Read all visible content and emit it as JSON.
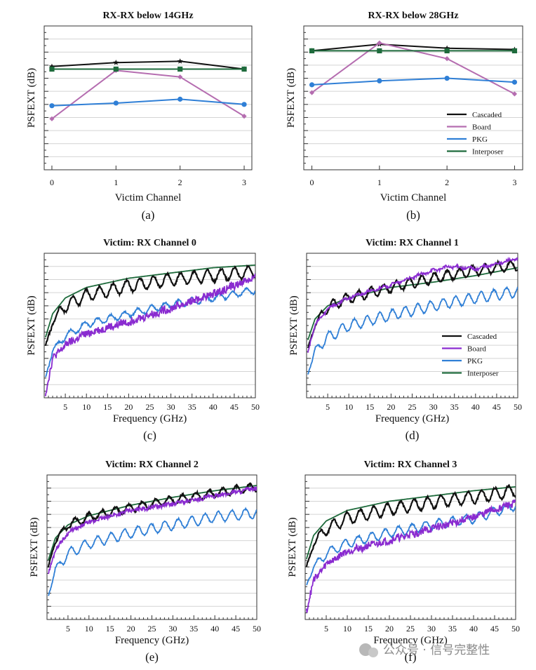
{
  "colors": {
    "Cascaded": "#111111",
    "Board": "#b56db0",
    "Board_freq": "#8a2bd0",
    "PKG": "#2f7fd6",
    "Interposer": "#1e6b3c",
    "grid": "#d4d4d4"
  },
  "legend": [
    "Cascaded",
    "Board",
    "PKG",
    "Interposer"
  ],
  "watermark": "公众号 · 信号完整性",
  "chart_data": [
    {
      "id": "a",
      "type": "line",
      "title": "RX-RX below 14GHz",
      "xlabel": "Victim Channel",
      "ylabel": "PSFEXT (dB)",
      "caption": "(a)",
      "categories": [
        0,
        1,
        2,
        3
      ],
      "xlim": [
        -0.12,
        3.12
      ],
      "ylim": [
        0,
        11
      ],
      "grid": true,
      "show_legend": false,
      "series": [
        {
          "name": "Cascaded",
          "values": [
            7.9,
            8.2,
            8.3,
            7.7
          ],
          "marker": "star"
        },
        {
          "name": "Board",
          "values": [
            3.9,
            7.6,
            7.1,
            4.1
          ],
          "marker": "diamond"
        },
        {
          "name": "PKG",
          "values": [
            4.9,
            5.1,
            5.4,
            5.0
          ],
          "marker": "circle"
        },
        {
          "name": "Interposer",
          "values": [
            7.7,
            7.7,
            7.7,
            7.7
          ],
          "marker": "square"
        }
      ]
    },
    {
      "id": "b",
      "type": "line",
      "title": "RX-RX below 28GHz",
      "xlabel": "Victim Channel",
      "ylabel": "PSFEXT (dB)",
      "caption": "(b)",
      "categories": [
        0,
        1,
        2,
        3
      ],
      "xlim": [
        -0.12,
        3.12
      ],
      "ylim": [
        0,
        11
      ],
      "grid": true,
      "show_legend": true,
      "series": [
        {
          "name": "Cascaded",
          "values": [
            9.1,
            9.6,
            9.3,
            9.2
          ],
          "marker": "star"
        },
        {
          "name": "Board",
          "values": [
            5.9,
            9.7,
            8.5,
            5.8
          ],
          "marker": "diamond"
        },
        {
          "name": "PKG",
          "values": [
            6.5,
            6.8,
            7.0,
            6.7
          ],
          "marker": "circle"
        },
        {
          "name": "Interposer",
          "values": [
            9.1,
            9.1,
            9.1,
            9.1
          ],
          "marker": "square"
        }
      ]
    },
    {
      "id": "c",
      "type": "line",
      "title": "Victim: RX Channel 0",
      "xlabel": "Frequency (GHz)",
      "ylabel": "PSFEXT (dB)",
      "caption": "(c)",
      "xticks": [
        5,
        10,
        15,
        20,
        25,
        30,
        35,
        40,
        45,
        50
      ],
      "xlim": [
        0,
        50
      ],
      "ylim": [
        0,
        11
      ],
      "grid": true,
      "show_legend": false,
      "series": [
        {
          "name": "Interposer",
          "base": [
            [
              0.3,
              4.6
            ],
            [
              2,
              6.4
            ],
            [
              5,
              7.6
            ],
            [
              10,
              8.4
            ],
            [
              20,
              9.1
            ],
            [
              30,
              9.5
            ],
            [
              40,
              9.9
            ],
            [
              50,
              10.1
            ]
          ],
          "ripple": 0
        },
        {
          "name": "Cascaded",
          "base": [
            [
              0.3,
              3.9
            ],
            [
              2,
              5.8
            ],
            [
              5,
              7.0
            ],
            [
              10,
              7.8
            ],
            [
              20,
              8.5
            ],
            [
              30,
              9.0
            ],
            [
              40,
              9.3
            ],
            [
              50,
              9.6
            ]
          ],
          "ripple": 0.45,
          "period": 3.2,
          "noise": 0.08
        },
        {
          "name": "PKG",
          "base": [
            [
              0.3,
              1.5
            ],
            [
              2,
              3.6
            ],
            [
              5,
              4.7
            ],
            [
              10,
              5.6
            ],
            [
              20,
              6.4
            ],
            [
              30,
              7.1
            ],
            [
              40,
              7.6
            ],
            [
              50,
              8.2
            ]
          ],
          "ripple": 0.25,
          "period": 3.2,
          "noise": 0.08
        },
        {
          "name": "Board",
          "base": [
            [
              0.3,
              0.3
            ],
            [
              2,
              3.0
            ],
            [
              5,
              4.0
            ],
            [
              10,
              4.9
            ],
            [
              20,
              5.8
            ],
            [
              30,
              6.8
            ],
            [
              40,
              7.9
            ],
            [
              50,
              9.2
            ]
          ],
          "ripple": 0.05,
          "period": 3.2,
          "noise": 0.3
        }
      ]
    },
    {
      "id": "d",
      "type": "line",
      "title": "Victim: RX Channel 1",
      "xlabel": "Frequency (GHz)",
      "ylabel": "PSFEXT (dB)",
      "caption": "(d)",
      "xticks": [
        5,
        10,
        15,
        20,
        25,
        30,
        35,
        40,
        45,
        50
      ],
      "xlim": [
        0,
        50
      ],
      "ylim": [
        0,
        11
      ],
      "grid": true,
      "show_legend": true,
      "series": [
        {
          "name": "Interposer",
          "base": [
            [
              0.3,
              4.4
            ],
            [
              2,
              6.0
            ],
            [
              5,
              7.0
            ],
            [
              10,
              7.6
            ],
            [
              20,
              8.4
            ],
            [
              30,
              8.8
            ],
            [
              40,
              9.3
            ],
            [
              50,
              9.9
            ]
          ],
          "ripple": 0
        },
        {
          "name": "Cascaded",
          "base": [
            [
              0.3,
              3.7
            ],
            [
              2,
              5.6
            ],
            [
              5,
              6.9
            ],
            [
              10,
              7.6
            ],
            [
              20,
              8.4
            ],
            [
              30,
              9.1
            ],
            [
              40,
              9.7
            ],
            [
              50,
              10.1
            ]
          ],
          "ripple": 0.38,
          "period": 3.0,
          "noise": 0.08
        },
        {
          "name": "Board",
          "base": [
            [
              0.3,
              3.5
            ],
            [
              2,
              5.5
            ],
            [
              5,
              6.8
            ],
            [
              10,
              7.6
            ],
            [
              20,
              8.6
            ],
            [
              30,
              9.7
            ],
            [
              34,
              10.0
            ],
            [
              40,
              9.8
            ],
            [
              50,
              10.6
            ]
          ],
          "ripple": 0.08,
          "period": 3.0,
          "noise": 0.1
        },
        {
          "name": "PKG",
          "base": [
            [
              0.3,
              1.8
            ],
            [
              2,
              3.6
            ],
            [
              5,
              4.6
            ],
            [
              10,
              5.5
            ],
            [
              20,
              6.3
            ],
            [
              30,
              7.0
            ],
            [
              40,
              7.6
            ],
            [
              50,
              8.1
            ]
          ],
          "ripple": 0.4,
          "period": 3.0,
          "noise": 0.06
        }
      ]
    },
    {
      "id": "e",
      "type": "line",
      "title": "Victim: RX Channel 2",
      "xlabel": "Frequency (GHz)",
      "ylabel": "PSFEXT (dB)",
      "caption": "(e)",
      "xticks": [
        5,
        10,
        15,
        20,
        25,
        30,
        35,
        40,
        45,
        50
      ],
      "xlim": [
        0,
        50
      ],
      "ylim": [
        0,
        11
      ],
      "grid": true,
      "show_legend": false,
      "series": [
        {
          "name": "Interposer",
          "base": [
            [
              0.3,
              4.5
            ],
            [
              2,
              6.2
            ],
            [
              5,
              7.2
            ],
            [
              10,
              7.9
            ],
            [
              20,
              8.7
            ],
            [
              30,
              9.3
            ],
            [
              40,
              9.8
            ],
            [
              50,
              10.2
            ]
          ],
          "ripple": 0
        },
        {
          "name": "Cascaded",
          "base": [
            [
              0.3,
              4.0
            ],
            [
              2,
              6.0
            ],
            [
              5,
              7.2
            ],
            [
              10,
              7.8
            ],
            [
              20,
              8.5
            ],
            [
              30,
              9.1
            ],
            [
              40,
              9.6
            ],
            [
              50,
              10.1
            ]
          ],
          "ripple": 0.3,
          "period": 3.2,
          "noise": 0.08
        },
        {
          "name": "Board",
          "base": [
            [
              0.3,
              3.5
            ],
            [
              2,
              5.3
            ],
            [
              5,
              6.6
            ],
            [
              10,
              7.4
            ],
            [
              20,
              8.3
            ],
            [
              30,
              8.8
            ],
            [
              40,
              9.4
            ],
            [
              50,
              10.0
            ]
          ],
          "ripple": 0.05,
          "period": 3.2,
          "noise": 0.15
        },
        {
          "name": "PKG",
          "base": [
            [
              0.3,
              1.8
            ],
            [
              2,
              3.8
            ],
            [
              5,
              5.0
            ],
            [
              10,
              5.8
            ],
            [
              20,
              6.6
            ],
            [
              30,
              7.2
            ],
            [
              40,
              7.8
            ],
            [
              50,
              8.1
            ]
          ],
          "ripple": 0.38,
          "period": 3.2,
          "noise": 0.06
        }
      ]
    },
    {
      "id": "f",
      "type": "line",
      "title": "Victim: RX Channel 3",
      "xlabel": "Frequency (GHz)",
      "ylabel": "PSFEXT (dB)",
      "caption": "(f)",
      "xticks": [
        5,
        10,
        15,
        20,
        25,
        30,
        35,
        40,
        45,
        50
      ],
      "xlim": [
        0,
        50
      ],
      "ylim": [
        0,
        11
      ],
      "grid": true,
      "show_legend": false,
      "series": [
        {
          "name": "Interposer",
          "base": [
            [
              0.3,
              4.6
            ],
            [
              2,
              6.4
            ],
            [
              5,
              7.5
            ],
            [
              10,
              8.3
            ],
            [
              20,
              9.0
            ],
            [
              30,
              9.4
            ],
            [
              40,
              9.8
            ],
            [
              50,
              10.1
            ]
          ],
          "ripple": 0
        },
        {
          "name": "Cascaded",
          "base": [
            [
              0.3,
              4.0
            ],
            [
              2,
              5.8
            ],
            [
              5,
              6.9
            ],
            [
              10,
              7.7
            ],
            [
              20,
              8.4
            ],
            [
              30,
              8.9
            ],
            [
              40,
              9.3
            ],
            [
              50,
              9.8
            ]
          ],
          "ripple": 0.45,
          "period": 3.2,
          "noise": 0.08
        },
        {
          "name": "PKG",
          "base": [
            [
              0.3,
              2.6
            ],
            [
              2,
              4.0
            ],
            [
              5,
              5.0
            ],
            [
              10,
              5.8
            ],
            [
              20,
              6.6
            ],
            [
              30,
              7.2
            ],
            [
              40,
              7.7
            ],
            [
              50,
              8.7
            ]
          ],
          "ripple": 0.35,
          "period": 3.2,
          "noise": 0.06
        },
        {
          "name": "Board",
          "base": [
            [
              0.3,
              0.6
            ],
            [
              2,
              3.0
            ],
            [
              5,
              4.2
            ],
            [
              10,
              5.2
            ],
            [
              20,
              6.0
            ],
            [
              30,
              6.9
            ],
            [
              40,
              7.8
            ],
            [
              50,
              8.9
            ]
          ],
          "ripple": 0.05,
          "period": 3.2,
          "noise": 0.28
        }
      ]
    }
  ]
}
